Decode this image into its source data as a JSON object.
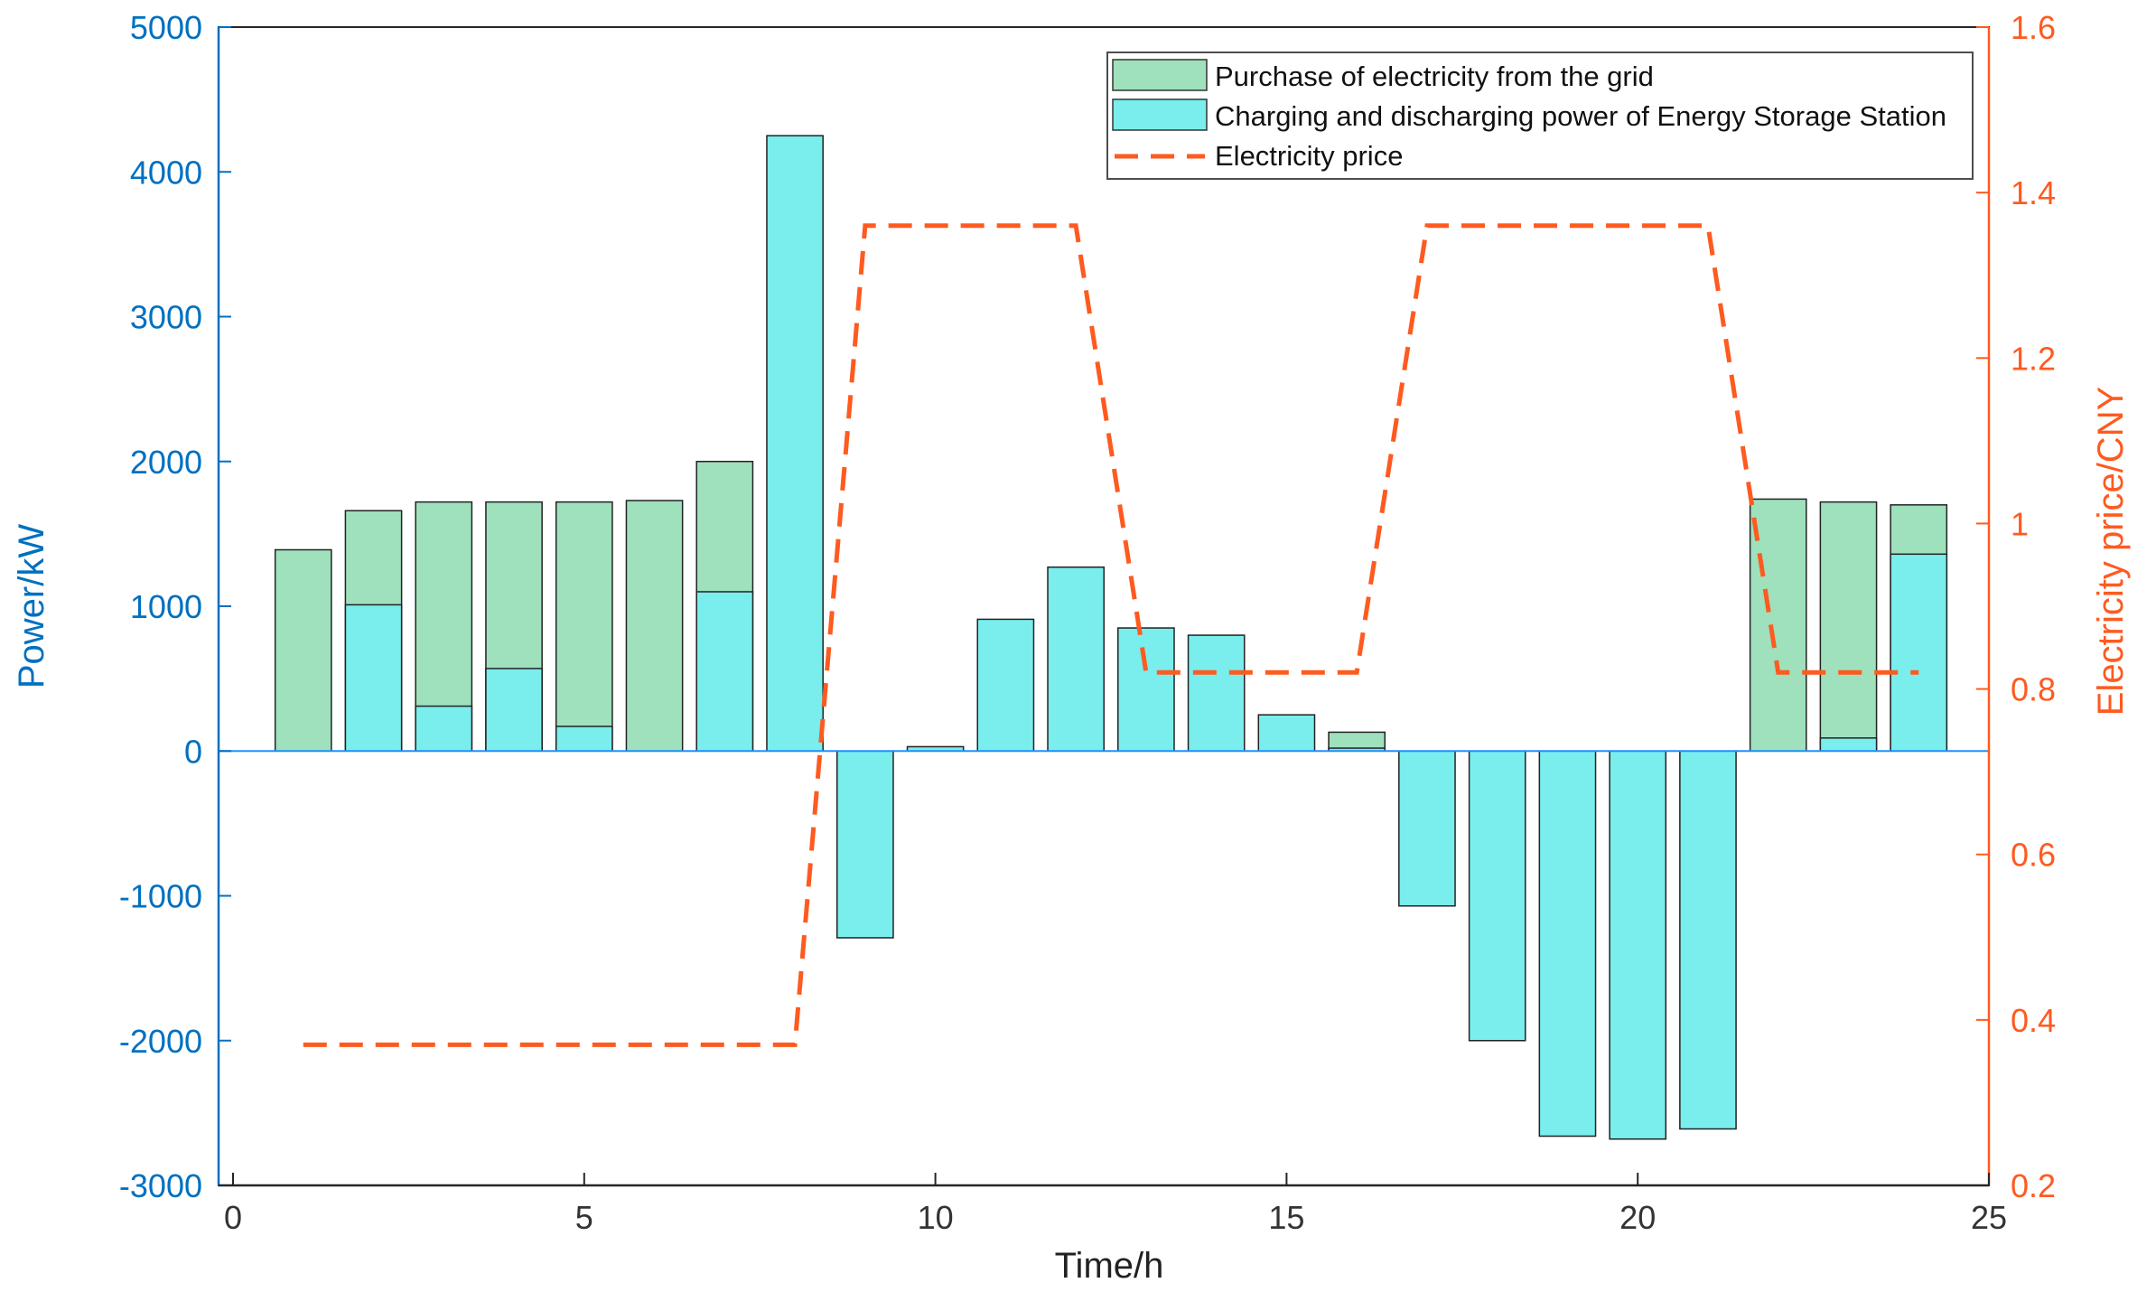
{
  "chart_data": {
    "type": "bar",
    "combo": "stacked-bar + dashed-line (dual y axes)",
    "x": [
      1,
      2,
      3,
      4,
      5,
      6,
      7,
      8,
      9,
      10,
      11,
      12,
      13,
      14,
      15,
      16,
      17,
      18,
      19,
      20,
      21,
      22,
      23,
      24
    ],
    "xlabel": "Time/h",
    "xlim": [
      0,
      25
    ],
    "xticks": [
      0,
      5,
      10,
      15,
      20,
      25
    ],
    "ylabel": "Power/kW",
    "ylim": [
      -3000,
      5000
    ],
    "yticks": [
      -3000,
      -2000,
      -1000,
      0,
      1000,
      2000,
      3000,
      4000,
      5000
    ],
    "y2label": "Electricity price/CNY",
    "y2lim": [
      0.2,
      1.6
    ],
    "y2ticks": [
      0.2,
      0.4,
      0.6,
      0.8,
      1,
      1.2,
      1.4,
      1.6
    ],
    "series": [
      {
        "name": "Charging and discharging power of  Energy Storage Station",
        "kind": "bar",
        "axis": "left",
        "color": "#7AEDED",
        "values": [
          0,
          1010,
          310,
          570,
          170,
          0,
          1100,
          4250,
          -1290,
          30,
          910,
          1270,
          850,
          800,
          250,
          20,
          -1070,
          -2000,
          -2660,
          -2680,
          -2610,
          0,
          90,
          1360
        ]
      },
      {
        "name": "Purchase of electricity from the grid",
        "kind": "bar",
        "axis": "left",
        "color": "#9EE1BC",
        "values": [
          1390,
          1660,
          1720,
          1720,
          1720,
          1730,
          2000,
          0,
          0,
          0,
          0,
          0,
          0,
          0,
          0,
          130,
          0,
          0,
          0,
          0,
          0,
          1740,
          1720,
          1700
        ]
      },
      {
        "name": "Electricity price",
        "kind": "line",
        "axis": "right",
        "style": "dashed",
        "color": "#FF5A1F",
        "values": [
          0.37,
          0.37,
          0.37,
          0.37,
          0.37,
          0.37,
          0.37,
          0.37,
          1.36,
          1.36,
          1.36,
          1.36,
          0.82,
          0.82,
          0.82,
          0.82,
          1.36,
          1.36,
          1.36,
          1.36,
          1.36,
          0.82,
          0.82,
          0.82
        ]
      }
    ],
    "legend": {
      "position": "top-right",
      "entries": [
        "Purchase of electricity from the grid",
        "Charging and discharging power of  Energy Storage Station",
        "Electricity price"
      ]
    },
    "colors": {
      "left_axis": "#0070C0",
      "right_axis": "#FF5A1F",
      "zero_line": "#1E90FF"
    }
  }
}
